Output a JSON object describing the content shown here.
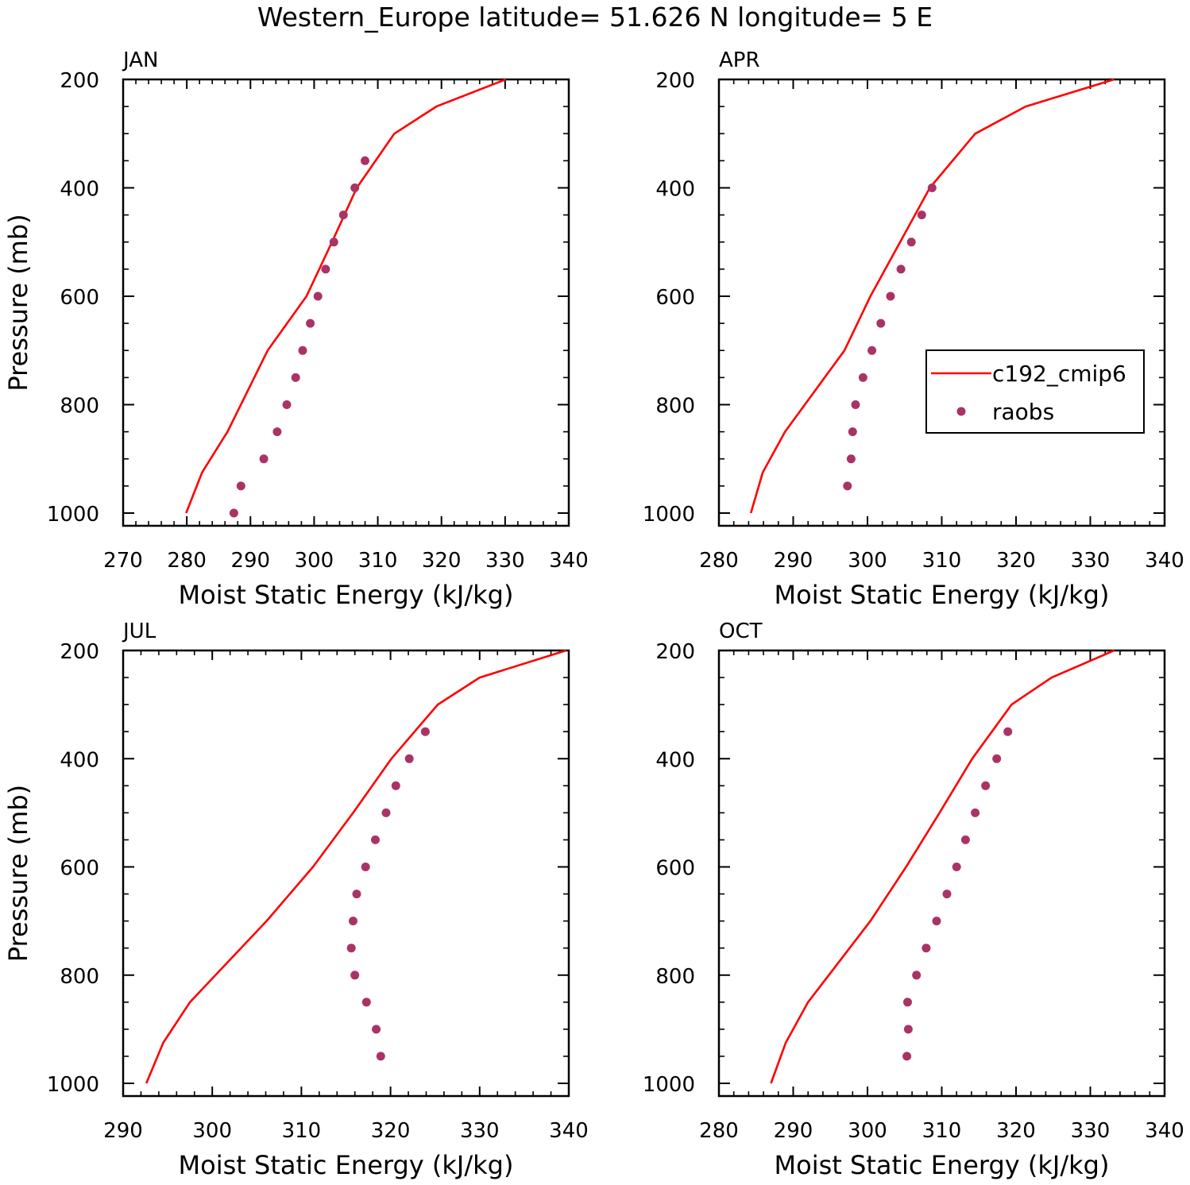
{
  "figure": {
    "title": "Western_Europe  latitude= 51.626 N longitude= 5 E"
  },
  "colors": {
    "model": "#ff0000",
    "obs": "#aa3366",
    "axis": "#000000"
  },
  "legend": {
    "model_label": "c192_cmip6",
    "obs_label": "raobs",
    "panel": "APR"
  },
  "chart_data": [
    {
      "type": "line",
      "panel": "JAN",
      "title": "JAN",
      "xlabel": "Moist Static Energy (kJ/kg)",
      "ylabel": "Pressure (mb)",
      "xlim": [
        270,
        340
      ],
      "xticks": [
        270,
        280,
        290,
        300,
        310,
        320,
        330,
        340
      ],
      "ylim": [
        1000,
        200
      ],
      "yticks": [
        200,
        400,
        600,
        800,
        1000
      ],
      "series": [
        {
          "name": "c192_cmip6",
          "style": "line",
          "x": [
            279.9,
            282.4,
            286.4,
            292.7,
            298.8,
            302.8,
            306.7,
            312.6,
            319.2,
            330.1
          ],
          "y": [
            1000,
            925,
            850,
            700,
            600,
            500,
            400,
            300,
            250,
            200
          ]
        },
        {
          "name": "raobs",
          "style": "markers",
          "x": [
            287.4,
            288.5,
            292.1,
            294.2,
            295.7,
            297.1,
            298.2,
            299.4,
            300.6,
            301.8,
            303.1,
            304.6,
            306.4,
            308.0
          ],
          "y": [
            1000,
            950,
            900,
            850,
            800,
            750,
            700,
            650,
            600,
            550,
            500,
            450,
            400,
            350
          ]
        }
      ]
    },
    {
      "type": "line",
      "panel": "APR",
      "title": "APR",
      "xlabel": "Moist Static Energy (kJ/kg)",
      "ylabel": "",
      "xlim": [
        280,
        340
      ],
      "xticks": [
        280,
        290,
        300,
        310,
        320,
        330,
        340
      ],
      "ylim": [
        1000,
        200
      ],
      "yticks": [
        200,
        400,
        600,
        800,
        1000
      ],
      "series": [
        {
          "name": "c192_cmip6",
          "style": "line",
          "x": [
            284.3,
            285.9,
            288.9,
            296.9,
            300.4,
            304.4,
            308.4,
            314.5,
            321.3,
            333.2
          ],
          "y": [
            1000,
            925,
            850,
            700,
            600,
            500,
            400,
            300,
            250,
            200
          ]
        },
        {
          "name": "raobs",
          "style": "markers",
          "x": [
            297.3,
            297.8,
            298.0,
            298.4,
            299.4,
            300.6,
            301.8,
            303.1,
            304.5,
            305.9,
            307.3,
            308.7
          ],
          "y": [
            950,
            900,
            850,
            800,
            750,
            700,
            650,
            600,
            550,
            500,
            450,
            400
          ]
        }
      ]
    },
    {
      "type": "line",
      "panel": "JUL",
      "title": "JUL",
      "xlabel": "Moist Static Energy (kJ/kg)",
      "ylabel": "Pressure (mb)",
      "xlim": [
        290,
        340
      ],
      "xticks": [
        290,
        300,
        310,
        320,
        330,
        340
      ],
      "ylim": [
        1000,
        200
      ],
      "yticks": [
        200,
        400,
        600,
        800,
        1000
      ],
      "series": [
        {
          "name": "c192_cmip6",
          "style": "line",
          "x": [
            292.6,
            294.5,
            297.5,
            306.1,
            311.3,
            315.8,
            320.1,
            325.3,
            330.0,
            339.7
          ],
          "y": [
            1000,
            925,
            850,
            700,
            600,
            500,
            400,
            300,
            250,
            200
          ]
        },
        {
          "name": "raobs",
          "style": "markers",
          "x": [
            318.9,
            318.4,
            317.3,
            316.0,
            315.6,
            315.8,
            316.2,
            317.2,
            318.3,
            319.5,
            320.6,
            322.1,
            323.9
          ],
          "y": [
            950,
            900,
            850,
            800,
            750,
            700,
            650,
            600,
            550,
            500,
            450,
            400,
            350
          ]
        }
      ]
    },
    {
      "type": "line",
      "panel": "OCT",
      "title": "OCT",
      "xlabel": "Moist Static Energy (kJ/kg)",
      "ylabel": "",
      "xlim": [
        280,
        340
      ],
      "xticks": [
        280,
        290,
        300,
        310,
        320,
        330,
        340
      ],
      "ylim": [
        1000,
        200
      ],
      "yticks": [
        200,
        400,
        600,
        800,
        1000
      ],
      "series": [
        {
          "name": "c192_cmip6",
          "style": "line",
          "x": [
            287.0,
            289.0,
            292.0,
            300.4,
            305.2,
            309.7,
            314.1,
            319.4,
            324.8,
            333.2
          ],
          "y": [
            1000,
            925,
            850,
            700,
            600,
            500,
            400,
            300,
            250,
            200
          ]
        },
        {
          "name": "raobs",
          "style": "markers",
          "x": [
            305.3,
            305.5,
            305.4,
            306.6,
            307.9,
            309.3,
            310.7,
            312.0,
            313.2,
            314.5,
            315.9,
            317.4,
            318.9
          ],
          "y": [
            950,
            900,
            850,
            800,
            750,
            700,
            650,
            600,
            550,
            500,
            450,
            400,
            350
          ]
        }
      ]
    }
  ]
}
